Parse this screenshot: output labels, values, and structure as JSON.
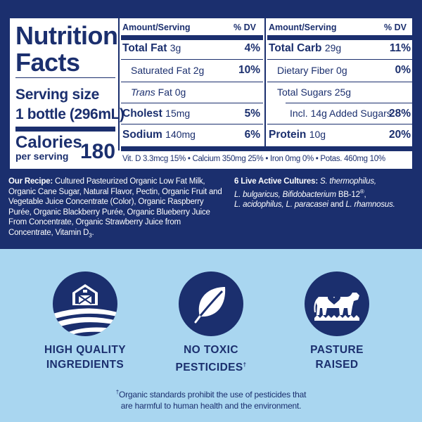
{
  "colors": {
    "navy": "#1b2f6e",
    "light_blue": "#a9d6f0",
    "white": "#ffffff"
  },
  "label": {
    "title_line1": "Nutrition",
    "title_line2": "Facts",
    "serving_label": "Serving size",
    "serving_value": "1 bottle (296mL)",
    "calories_label": "Calories",
    "calories_sub": "per serving",
    "calories_value": "180",
    "header_amount": "Amount/Serving",
    "header_dv": "% DV",
    "left_rows": [
      {
        "name": "Total Fat",
        "amount": "3g",
        "dv": "4%"
      },
      {
        "name": "Saturated Fat",
        "amount": "2g",
        "dv": "10%"
      },
      {
        "name_italic": "Trans",
        "name": "Fat",
        "amount": "0g",
        "dv": ""
      },
      {
        "name": "Cholest",
        "amount": "15mg",
        "dv": "5%"
      },
      {
        "name": "Sodium",
        "amount": "140mg",
        "dv": "6%"
      }
    ],
    "right_rows": [
      {
        "name": "Total Carb",
        "amount": "29g",
        "dv": "11%"
      },
      {
        "name": "Dietary Fiber",
        "amount": "0g",
        "dv": "0%"
      },
      {
        "name": "Total Sugars",
        "amount": "25g",
        "dv": ""
      },
      {
        "name": "Incl. 14g Added Sugars",
        "amount": "",
        "dv": "28%"
      },
      {
        "name": "Protein",
        "amount": "10g",
        "dv": "20%"
      }
    ],
    "vitamins": "Vit. D  3.3mcg 15% • Calcium 350mg 25% • Iron 0mg 0% • Potas. 460mg 10%"
  },
  "recipe": {
    "heading": "Our Recipe:",
    "text": "Cultured Pasteurized Organic Low Fat Milk, Organic Cane Sugar, Natural Flavor, Pectin, Organic Fruit and Vegetable Juice Concentrate (Color), Organic Raspberry Purée, Organic Blackberry Purée, Organic Blueberry Juice From Concentrate, Organic Strawberry Juice from Concentrate, Vitamin D",
    "vitamin_sub": "3",
    "end": "."
  },
  "cultures": {
    "heading": "6 Live Active Cultures:",
    "line1": "S. thermophilus,",
    "line2a": "L. bulgaricus, Bifidobacterium",
    "line2b": "BB-12",
    "reg": "®",
    "line2c": ",",
    "line3a": "L. acidophilus, L. paracasei",
    "line3b": "and",
    "line3c": "L. rhamnosus."
  },
  "badges": [
    {
      "line1": "HIGH QUALITY",
      "line2": "INGREDIENTS",
      "icon": "barn-field-icon"
    },
    {
      "line1": "NO TOXIC",
      "line2": "PESTICIDES",
      "mark": "†",
      "icon": "leaf-icon"
    },
    {
      "line1": "PASTURE",
      "line2": "RAISED",
      "icon": "cow-heart-icon"
    }
  ],
  "footnote": {
    "mark": "†",
    "line1": "Organic standards prohibit the use of pesticides that",
    "line2": "are harmful to human health and the environment."
  }
}
